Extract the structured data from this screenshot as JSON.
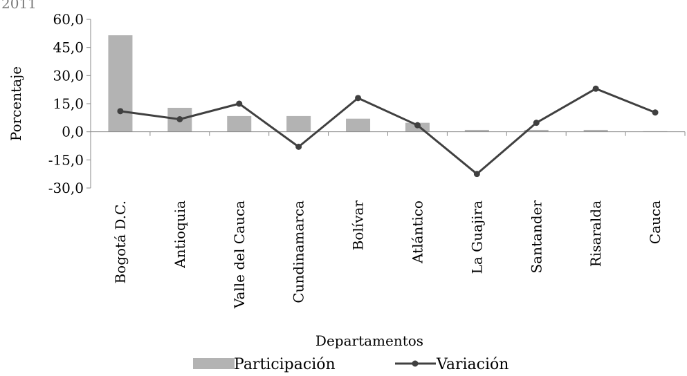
{
  "chart_data": {
    "type": "bar",
    "title_fragment": "2011",
    "categories": [
      "Bogotá D.C.",
      "Antioquia",
      "Valle del Cauca",
      "Cundinamarca",
      "Bolívar",
      "Atlántico",
      "La Guajira",
      "Santander",
      "Risaralda",
      "Cauca"
    ],
    "series": [
      {
        "name": "Participación",
        "kind": "bar",
        "color": "#b3b3b3",
        "values": [
          51.5,
          12.8,
          8.4,
          8.4,
          7.0,
          4.8,
          1.0,
          1.0,
          1.0,
          0.3
        ]
      },
      {
        "name": "Variación",
        "kind": "line",
        "color": "#404040",
        "values": [
          11.0,
          6.7,
          15.0,
          -8.0,
          18.0,
          3.5,
          -22.5,
          4.8,
          23.0,
          10.3
        ]
      }
    ],
    "xlabel": "Departamentos",
    "ylabel": "Porcentaje",
    "ylim": [
      -30.0,
      60.0
    ],
    "yticks": [
      "60,0",
      "45,0",
      "30,0",
      "15,0",
      "0,0",
      "-15,0",
      "-30,0"
    ],
    "ytick_values": [
      60,
      45,
      30,
      15,
      0,
      -15,
      -30
    ],
    "grid": false,
    "legend_position": "bottom"
  }
}
